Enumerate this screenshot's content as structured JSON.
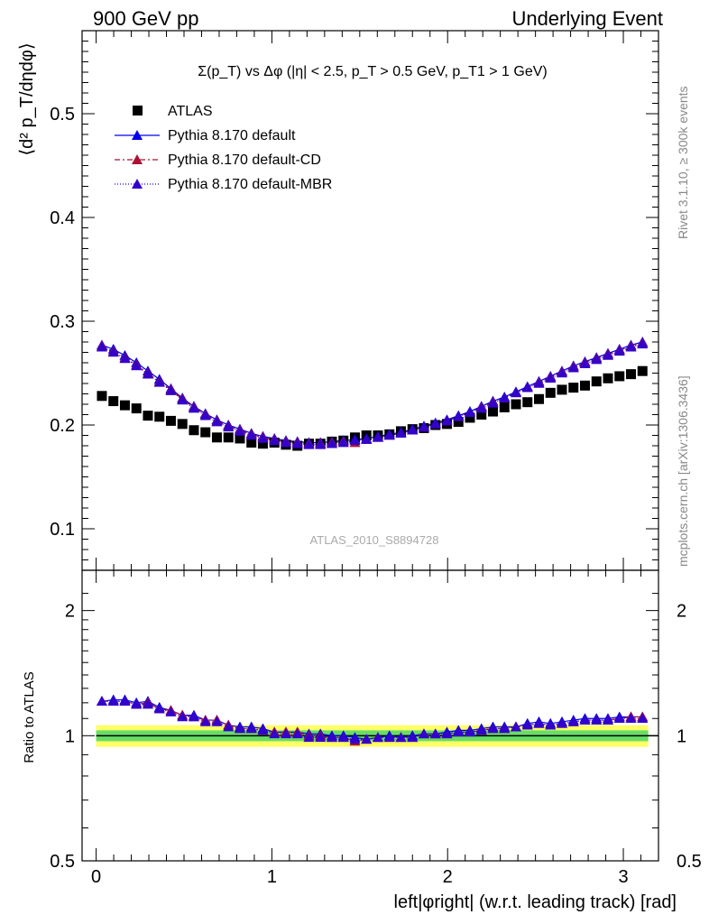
{
  "header": {
    "left": "900 GeV pp",
    "right": "Underlying Event"
  },
  "side_labels": {
    "rivet": "Rivet 3.1.10, ≥ 300k events",
    "mcplots": "mcplots.cern.ch [arXiv:1306.3436]"
  },
  "watermark": "ATLAS_2010_S8894728",
  "colors": {
    "atlas": "#000000",
    "default": "#0000ee",
    "default_cd": "#aa1133",
    "default_mbr": "#3300cc",
    "band_inner": "#66dd66",
    "band_outer": "#ffff66"
  },
  "chart_data": [
    {
      "type": "scatter",
      "title": "Σ(p_T) vs Δφ (|η| < 2.5, p_T > 0.5 GeV, p_T1 > 1 GeV)",
      "ylabel": "⟨d² p_T/dηdφ⟩",
      "xlabel": "",
      "xlim": [
        -0.08,
        3.2
      ],
      "ylim": [
        0.06,
        0.58
      ],
      "yticks": [
        0.1,
        0.2,
        0.3,
        0.4,
        0.5
      ],
      "legend_position": "top-left",
      "x": [
        0.0327,
        0.0982,
        0.1636,
        0.2291,
        0.2945,
        0.36,
        0.4254,
        0.4909,
        0.5563,
        0.6218,
        0.6872,
        0.7527,
        0.8181,
        0.8836,
        0.949,
        1.0145,
        1.0799,
        1.1454,
        1.2108,
        1.2763,
        1.3417,
        1.4072,
        1.4726,
        1.5381,
        1.6035,
        1.669,
        1.7344,
        1.7999,
        1.8653,
        1.9308,
        1.9962,
        2.0617,
        2.1271,
        2.1926,
        2.258,
        2.3235,
        2.3889,
        2.4544,
        2.5198,
        2.5853,
        2.6507,
        2.7162,
        2.7816,
        2.8471,
        2.9125,
        2.978,
        3.0434,
        3.1089
      ],
      "series": [
        {
          "name": "ATLAS",
          "marker": "square",
          "values": [
            0.228,
            0.223,
            0.219,
            0.216,
            0.209,
            0.208,
            0.204,
            0.201,
            0.195,
            0.193,
            0.188,
            0.188,
            0.187,
            0.183,
            0.182,
            0.183,
            0.181,
            0.18,
            0.182,
            0.182,
            0.184,
            0.185,
            0.188,
            0.19,
            0.19,
            0.191,
            0.194,
            0.196,
            0.197,
            0.2,
            0.201,
            0.203,
            0.207,
            0.21,
            0.213,
            0.217,
            0.22,
            0.222,
            0.225,
            0.231,
            0.234,
            0.236,
            0.238,
            0.242,
            0.245,
            0.247,
            0.249,
            0.252
          ]
        },
        {
          "name": "Pythia 8.170 default",
          "marker": "triangle",
          "line": "solid",
          "values": [
            0.277,
            0.273,
            0.267,
            0.26,
            0.252,
            0.244,
            0.235,
            0.226,
            0.218,
            0.211,
            0.205,
            0.2,
            0.196,
            0.192,
            0.189,
            0.187,
            0.185,
            0.184,
            0.183,
            0.183,
            0.184,
            0.185,
            0.186,
            0.187,
            0.189,
            0.191,
            0.193,
            0.196,
            0.199,
            0.202,
            0.205,
            0.209,
            0.213,
            0.218,
            0.223,
            0.227,
            0.232,
            0.237,
            0.242,
            0.247,
            0.252,
            0.257,
            0.261,
            0.265,
            0.269,
            0.273,
            0.277,
            0.28
          ]
        },
        {
          "name": "Pythia 8.170 default-CD",
          "marker": "triangle",
          "line": "dashdot",
          "values": [
            0.276,
            0.271,
            0.265,
            0.258,
            0.25,
            0.242,
            0.234,
            0.225,
            0.217,
            0.21,
            0.204,
            0.199,
            0.195,
            0.191,
            0.188,
            0.186,
            0.184,
            0.183,
            0.182,
            0.182,
            0.183,
            0.184,
            0.183,
            0.186,
            0.188,
            0.19,
            0.192,
            0.195,
            0.198,
            0.201,
            0.204,
            0.208,
            0.212,
            0.217,
            0.222,
            0.226,
            0.231,
            0.236,
            0.241,
            0.246,
            0.251,
            0.256,
            0.26,
            0.264,
            0.268,
            0.272,
            0.276,
            0.279
          ]
        },
        {
          "name": "Pythia 8.170 default-MBR",
          "marker": "triangle",
          "line": "dotted",
          "values": [
            0.275,
            0.27,
            0.264,
            0.257,
            0.249,
            0.241,
            0.233,
            0.224,
            0.216,
            0.209,
            0.203,
            0.198,
            0.194,
            0.19,
            0.187,
            0.185,
            0.183,
            0.182,
            0.181,
            0.181,
            0.182,
            0.183,
            0.185,
            0.186,
            0.188,
            0.19,
            0.192,
            0.195,
            0.198,
            0.201,
            0.204,
            0.208,
            0.212,
            0.216,
            0.221,
            0.226,
            0.231,
            0.236,
            0.24,
            0.245,
            0.25,
            0.255,
            0.259,
            0.263,
            0.267,
            0.271,
            0.275,
            0.278
          ]
        }
      ]
    },
    {
      "type": "scatter",
      "ylabel": "Ratio to ATLAS",
      "xlabel": "left|φright| (w.r.t. leading track) [rad]",
      "xlim": [
        -0.08,
        3.2
      ],
      "ylim": [
        0.5,
        2.5
      ],
      "log_y": true,
      "yticks": [
        0.5,
        1,
        2
      ],
      "xticks": [
        0,
        1,
        2,
        3
      ],
      "band": {
        "inner": 0.03,
        "outer": 0.06
      },
      "series": [
        {
          "name": "Pythia 8.170 default",
          "values": [
            1.21,
            1.22,
            1.22,
            1.2,
            1.21,
            1.17,
            1.15,
            1.12,
            1.12,
            1.09,
            1.09,
            1.06,
            1.05,
            1.05,
            1.04,
            1.02,
            1.02,
            1.02,
            1.01,
            1.01,
            1.0,
            1.0,
            0.99,
            0.98,
            0.99,
            1.0,
            0.99,
            1.0,
            1.01,
            1.01,
            1.02,
            1.03,
            1.03,
            1.04,
            1.05,
            1.05,
            1.05,
            1.07,
            1.08,
            1.07,
            1.08,
            1.09,
            1.1,
            1.1,
            1.1,
            1.11,
            1.11,
            1.11
          ]
        },
        {
          "name": "Pythia 8.170 default-CD",
          "values": [
            1.21,
            1.21,
            1.21,
            1.19,
            1.2,
            1.16,
            1.15,
            1.12,
            1.11,
            1.09,
            1.09,
            1.06,
            1.04,
            1.04,
            1.03,
            1.02,
            1.02,
            1.02,
            1.0,
            1.0,
            0.99,
            0.99,
            0.97,
            0.98,
            0.99,
            0.99,
            0.99,
            0.99,
            1.01,
            1.01,
            1.01,
            1.02,
            1.02,
            1.03,
            1.04,
            1.04,
            1.05,
            1.06,
            1.07,
            1.06,
            1.07,
            1.08,
            1.09,
            1.09,
            1.09,
            1.1,
            1.11,
            1.11
          ]
        },
        {
          "name": "Pythia 8.170 default-MBR",
          "values": [
            1.21,
            1.21,
            1.21,
            1.19,
            1.19,
            1.16,
            1.14,
            1.11,
            1.11,
            1.08,
            1.08,
            1.05,
            1.04,
            1.04,
            1.03,
            1.01,
            1.01,
            1.01,
            0.99,
            0.99,
            0.99,
            0.99,
            0.98,
            0.98,
            0.99,
            0.99,
            0.99,
            0.99,
            1.01,
            1.01,
            1.01,
            1.02,
            1.02,
            1.03,
            1.04,
            1.04,
            1.05,
            1.06,
            1.07,
            1.06,
            1.07,
            1.08,
            1.09,
            1.09,
            1.09,
            1.1,
            1.1,
            1.1
          ]
        }
      ]
    }
  ]
}
